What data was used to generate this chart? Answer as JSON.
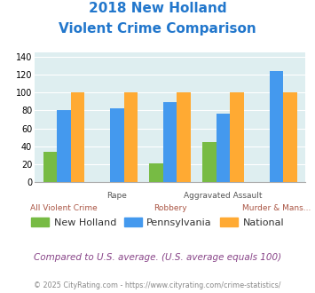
{
  "title_line1": "2018 New Holland",
  "title_line2": "Violent Crime Comparison",
  "categories": [
    "All Violent Crime",
    "Rape",
    "Robbery",
    "Aggravated Assault",
    "Murder & Mans..."
  ],
  "new_holland": [
    34,
    0,
    21,
    45,
    0
  ],
  "pennsylvania": [
    80,
    82,
    89,
    76,
    124
  ],
  "national": [
    100,
    100,
    100,
    100,
    100
  ],
  "color_nh": "#77bb44",
  "color_pa": "#4499ee",
  "color_nat": "#ffaa33",
  "ylim": [
    0,
    145
  ],
  "yticks": [
    0,
    20,
    40,
    60,
    80,
    100,
    120,
    140
  ],
  "legend_labels": [
    "New Holland",
    "Pennsylvania",
    "National"
  ],
  "footnote1": "Compared to U.S. average. (U.S. average equals 100)",
  "footnote2": "© 2025 CityRating.com - https://www.cityrating.com/crime-statistics/",
  "title_color": "#2277cc",
  "footnote1_color": "#884488",
  "footnote2_color": "#888888",
  "bg_color": "#deeef0",
  "bar_width": 0.26
}
